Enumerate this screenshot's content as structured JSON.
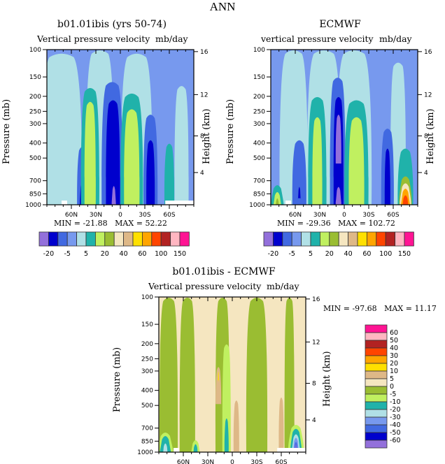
{
  "chart_data": [
    {
      "type": "heatmap",
      "subtype": "filled-contour",
      "title": "b01.01ibis (yrs 50-74)",
      "left_subtitle": "Vertical pressure velocity",
      "right_subtitle": "mb/day",
      "ylabel": "Pressure (mb)",
      "y2label": "Height (km)",
      "yticks": [
        "100",
        "150",
        "200",
        "250",
        "300",
        "400",
        "500",
        "700",
        "850",
        "1000"
      ],
      "y2ticks": [
        "16",
        "12",
        "8",
        "4"
      ],
      "xticks": [
        "60N",
        "30N",
        "0",
        "30S",
        "60S"
      ],
      "min_label": "MIN =",
      "min_value": "-21.88",
      "max_label": "MAX =",
      "max_value": "52.22",
      "colorbar": {
        "orientation": "horizontal",
        "colors": [
          "#9370DB",
          "#0000CD",
          "#4169E1",
          "#7799EE",
          "#B0E0E6",
          "#20B2AA",
          "#C0F060",
          "#9ABD32",
          "#F5E6C0",
          "#DEB887",
          "#FFE000",
          "#FFA500",
          "#FF4500",
          "#B22222",
          "#FFB6C1",
          "#FF1493"
        ],
        "labels": [
          "-20",
          "-5",
          "5",
          "20",
          "40",
          "60",
          "100",
          "150"
        ]
      }
    },
    {
      "type": "heatmap",
      "subtype": "filled-contour",
      "title": "ECMWF",
      "left_subtitle": "vertical pressure velocity",
      "right_subtitle": "mb/day",
      "ylabel": "Pressure (mb)",
      "y2label": "Height (km)",
      "yticks": [
        "100",
        "150",
        "200",
        "250",
        "300",
        "400",
        "500",
        "700",
        "850",
        "1000"
      ],
      "y2ticks": [
        "16",
        "12",
        "8",
        "4"
      ],
      "xticks": [
        "60N",
        "30N",
        "0",
        "30S",
        "60S"
      ],
      "min_label": "MIN =",
      "min_value": "-29.36",
      "max_label": "MAX =",
      "max_value": "102.72",
      "colorbar": {
        "orientation": "horizontal",
        "colors": [
          "#9370DB",
          "#0000CD",
          "#4169E1",
          "#7799EE",
          "#B0E0E6",
          "#20B2AA",
          "#C0F060",
          "#9ABD32",
          "#F5E6C0",
          "#DEB887",
          "#FFE000",
          "#FFA500",
          "#FF4500",
          "#B22222",
          "#FFB6C1",
          "#FF1493"
        ],
        "labels": [
          "-20",
          "-5",
          "5",
          "20",
          "40",
          "60",
          "100",
          "150"
        ]
      }
    },
    {
      "type": "heatmap",
      "subtype": "filled-contour",
      "title": "b01.01ibis - ECMWF",
      "left_subtitle": "Vertical pressure velocity",
      "right_subtitle": "mb/day",
      "ylabel": "Pressure (mb)",
      "y2label": "Height (km)",
      "yticks": [
        "100",
        "150",
        "200",
        "250",
        "300",
        "400",
        "500",
        "700",
        "850",
        "1000"
      ],
      "y2ticks": [
        "16",
        "12",
        "8",
        "4"
      ],
      "xticks": [
        "60N",
        "30N",
        "0",
        "30S",
        "60S"
      ],
      "min_label": "MIN =",
      "min_value": "-97.68",
      "max_label": "MAX =",
      "max_value": "11.17",
      "colorbar": {
        "orientation": "vertical",
        "colors": [
          "#FF1493",
          "#FFB6C1",
          "#B22222",
          "#FF4500",
          "#FFA500",
          "#FFE000",
          "#DEB887",
          "#F5E6C0",
          "#9ABD32",
          "#C0F060",
          "#20B2AA",
          "#B0E0E6",
          "#7799EE",
          "#4169E1",
          "#0000CD",
          "#9370DB"
        ],
        "labels": [
          "60",
          "50",
          "40",
          "30",
          "20",
          "10",
          "5",
          "0",
          "-5",
          "-10",
          "-20",
          "-30",
          "-40",
          "-50",
          "-60"
        ]
      }
    }
  ],
  "page": {
    "season": "ANN"
  }
}
